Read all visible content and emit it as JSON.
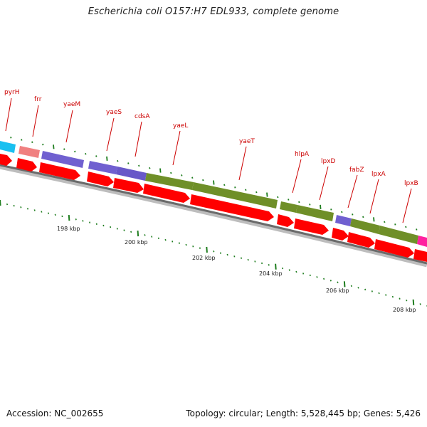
{
  "title": "Escherichia coli O157:H7 EDL933, complete genome",
  "footer": {
    "accession": "Accession: NC_002655",
    "info": "Topology: circular; Length: 5,528,445 bp; Genes: 5,426"
  },
  "colors": {
    "gene_arrow": "#ff0000",
    "label": "#cc0000",
    "backbone": "#808080",
    "tick": "#1e7d1e",
    "cog_cyan": "#19c0f0",
    "cog_salmon": "#f08080",
    "cog_purple": "#7060d0",
    "cog_olive": "#6f8f28",
    "cog_magenta": "#ff20a0"
  },
  "gene_labels": [
    "pyrH",
    "frr",
    "yaeM",
    "yaeS",
    "cdsA",
    "yaeL",
    "yaeT",
    "hlpA",
    "lpxD",
    "fabZ",
    "lpxA",
    "lpxB"
  ],
  "scale_labels": [
    "198 kbp",
    "200 kbp",
    "202 kbp",
    "204 kbp",
    "206 kbp",
    "208 kbp"
  ]
}
